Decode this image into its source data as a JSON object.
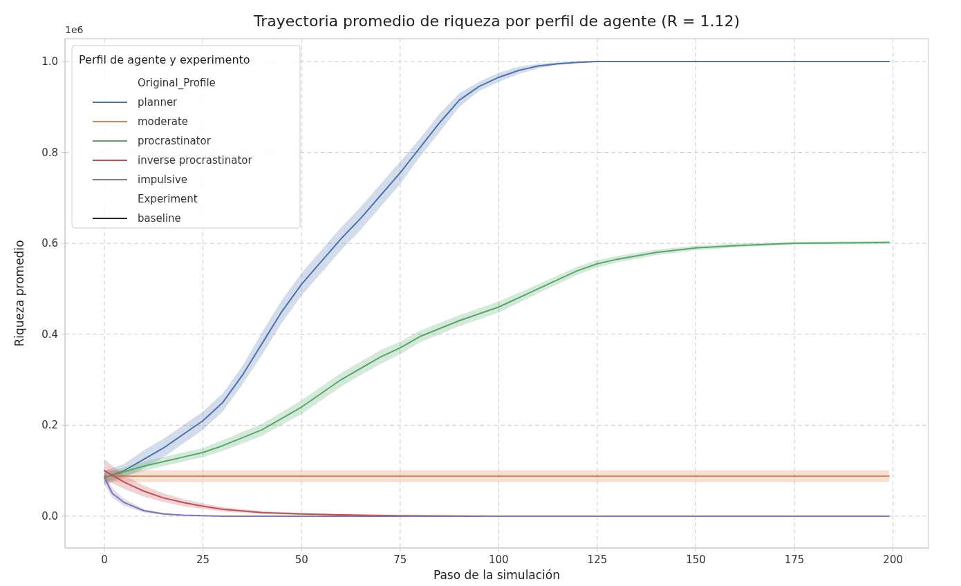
{
  "chart_data": {
    "type": "line",
    "title": "Trayectoria promedio de riqueza por perfil de agente (R = 1.12)",
    "xlabel": "Paso de la simulación",
    "ylabel": "Riqueza promedio",
    "legend_title": "Perfil de agente y experimento",
    "annotations": [
      "1e6",
      "Original_Profile",
      "Experiment",
      "baseline"
    ],
    "xlim": [
      -10,
      209
    ],
    "ylim": [
      -0.07,
      1.05
    ],
    "xticks": [
      0,
      25,
      50,
      75,
      100,
      125,
      150,
      175,
      200
    ],
    "yticks": [
      {
        "value": 0,
        "label": "0.0"
      },
      0.2,
      0.4,
      0.6,
      0.8,
      {
        "value": 1,
        "label": "1.0"
      }
    ],
    "grid": true,
    "legend": "top left",
    "line_style": "solid",
    "marker": "none",
    "series": [
      {
        "name": "planner",
        "color": "#4c72b0",
        "x": [
          0,
          5,
          10,
          15,
          20,
          25,
          30,
          35,
          40,
          45,
          50,
          55,
          60,
          65,
          70,
          75,
          80,
          85,
          90,
          95,
          100,
          105,
          110,
          115,
          120,
          125,
          150,
          199
        ],
        "values": [
          0.085,
          0.1,
          0.125,
          0.15,
          0.18,
          0.21,
          0.25,
          0.31,
          0.38,
          0.45,
          0.51,
          0.56,
          0.61,
          0.655,
          0.705,
          0.755,
          0.81,
          0.865,
          0.915,
          0.945,
          0.965,
          0.98,
          0.99,
          0.995,
          0.998,
          1.0,
          1.0,
          1.0
        ],
        "lower": [
          0.07,
          0.085,
          0.105,
          0.13,
          0.16,
          0.19,
          0.23,
          0.29,
          0.355,
          0.425,
          0.485,
          0.535,
          0.585,
          0.63,
          0.68,
          0.73,
          0.79,
          0.845,
          0.9,
          0.935,
          0.955,
          0.972,
          0.985,
          0.992,
          0.996,
          0.999,
          1.0,
          1.0
        ],
        "upper": [
          0.1,
          0.115,
          0.145,
          0.17,
          0.2,
          0.23,
          0.27,
          0.33,
          0.405,
          0.475,
          0.535,
          0.585,
          0.635,
          0.68,
          0.73,
          0.78,
          0.83,
          0.885,
          0.93,
          0.955,
          0.975,
          0.988,
          0.995,
          0.998,
          1.0,
          1.001,
          1.0,
          1.0
        ]
      },
      {
        "name": "moderate",
        "color": "#dd8452",
        "x": [
          0,
          199
        ],
        "values": [
          0.088,
          0.088
        ],
        "lower": [
          0.075,
          0.075
        ],
        "upper": [
          0.101,
          0.101
        ]
      },
      {
        "name": "procrastinator",
        "color": "#55a868",
        "x": [
          0,
          10,
          20,
          25,
          30,
          40,
          50,
          60,
          70,
          75,
          80,
          90,
          100,
          110,
          120,
          125,
          130,
          140,
          150,
          160,
          175,
          199
        ],
        "values": [
          0.085,
          0.11,
          0.13,
          0.14,
          0.155,
          0.19,
          0.24,
          0.3,
          0.35,
          0.37,
          0.395,
          0.43,
          0.46,
          0.5,
          0.54,
          0.555,
          0.565,
          0.58,
          0.59,
          0.595,
          0.6,
          0.602
        ],
        "lower": [
          0.075,
          0.1,
          0.12,
          0.13,
          0.143,
          0.177,
          0.225,
          0.285,
          0.335,
          0.356,
          0.382,
          0.418,
          0.448,
          0.49,
          0.531,
          0.547,
          0.558,
          0.574,
          0.585,
          0.591,
          0.597,
          0.599
        ],
        "upper": [
          0.095,
          0.12,
          0.14,
          0.15,
          0.167,
          0.203,
          0.255,
          0.315,
          0.365,
          0.384,
          0.408,
          0.442,
          0.472,
          0.51,
          0.549,
          0.563,
          0.572,
          0.586,
          0.595,
          0.599,
          0.603,
          0.605
        ]
      },
      {
        "name": "inverse procrastinator",
        "color": "#c44e52",
        "x": [
          0,
          5,
          10,
          15,
          20,
          25,
          30,
          40,
          50,
          60,
          75,
          100
        ],
        "values": [
          0.1,
          0.075,
          0.055,
          0.04,
          0.03,
          0.022,
          0.015,
          0.008,
          0.005,
          0.003,
          0.001,
          0
        ],
        "lower": [
          0.08,
          0.06,
          0.043,
          0.031,
          0.022,
          0.016,
          0.01,
          0.005,
          0.003,
          0.002,
          0.0005,
          0
        ],
        "upper": [
          0.125,
          0.09,
          0.067,
          0.05,
          0.038,
          0.028,
          0.02,
          0.011,
          0.007,
          0.004,
          0.0015,
          0
        ]
      },
      {
        "name": "impulsive",
        "color": "#8172b3",
        "x": [
          0,
          2,
          5,
          10,
          15,
          20,
          25,
          30,
          199
        ],
        "values": [
          0.085,
          0.05,
          0.03,
          0.012,
          0.005,
          0.002,
          0.001,
          0,
          0
        ],
        "lower": [
          0.07,
          0.04,
          0.023,
          0.008,
          0.003,
          0.001,
          0.0005,
          0,
          0
        ],
        "upper": [
          0.1,
          0.062,
          0.038,
          0.016,
          0.007,
          0.003,
          0.0015,
          0,
          0
        ]
      }
    ]
  }
}
